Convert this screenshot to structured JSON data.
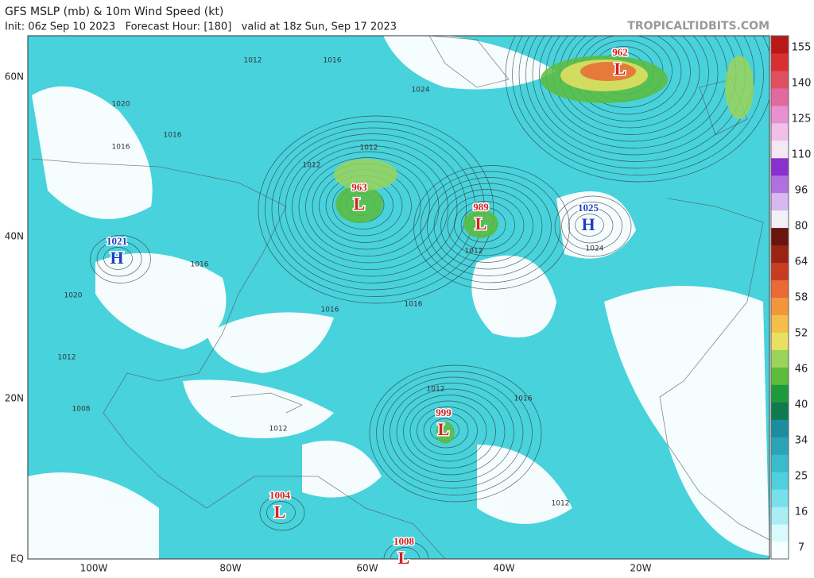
{
  "header": {
    "title": "GFS MSLP (mb) & 10m Wind Speed (kt)",
    "subtitle": "Init: 06z Sep 10 2023   Forecast Hour: [180]   valid at 18z Sun, Sep 17 2023",
    "site": "TROPICALTIDBITS.COM"
  },
  "map": {
    "lat_labels": [
      "60N",
      "40N",
      "20N",
      "EQ"
    ],
    "lon_labels": [
      "100W",
      "80W",
      "60W",
      "40W",
      "20W"
    ],
    "systems": [
      {
        "letter": "L",
        "value": 963
      },
      {
        "letter": "L",
        "value": 989
      },
      {
        "letter": "H",
        "value": 1025
      },
      {
        "letter": "H",
        "value": 1021
      },
      {
        "letter": "L",
        "value": 962
      },
      {
        "letter": "L",
        "value": 999
      },
      {
        "letter": "L",
        "value": 1004
      },
      {
        "letter": "L",
        "value": 1008
      }
    ],
    "isobar_labels": [
      1012,
      1016,
      1020,
      1016,
      1024,
      1016,
      1012,
      1012,
      1016,
      1020,
      1016,
      1012,
      1016,
      1012,
      1012,
      1008,
      1012,
      1012,
      1024,
      1016
    ]
  },
  "colorbar": {
    "ticks": [
      155,
      140,
      125,
      110,
      96,
      80,
      64,
      58,
      52,
      46,
      40,
      34,
      25,
      16,
      7
    ],
    "colors": [
      "#f8ffff",
      "#d8fafc",
      "#a8eef4",
      "#78e0ea",
      "#50d0de",
      "#38bccc",
      "#2aa4b6",
      "#1a8ea0",
      "#0f7a50",
      "#1e9a3e",
      "#5cbc3c",
      "#9ad45a",
      "#e8e060",
      "#f2c048",
      "#f2963c",
      "#e86a34",
      "#c83c22",
      "#9a2414",
      "#6a1410",
      "#f4f0f8",
      "#d8b8f0",
      "#b070e0",
      "#8a30d0",
      "#f4e8f4",
      "#f0c0e8",
      "#e890d0",
      "#e06aa0",
      "#e05060",
      "#d83030",
      "#b81818"
    ]
  }
}
